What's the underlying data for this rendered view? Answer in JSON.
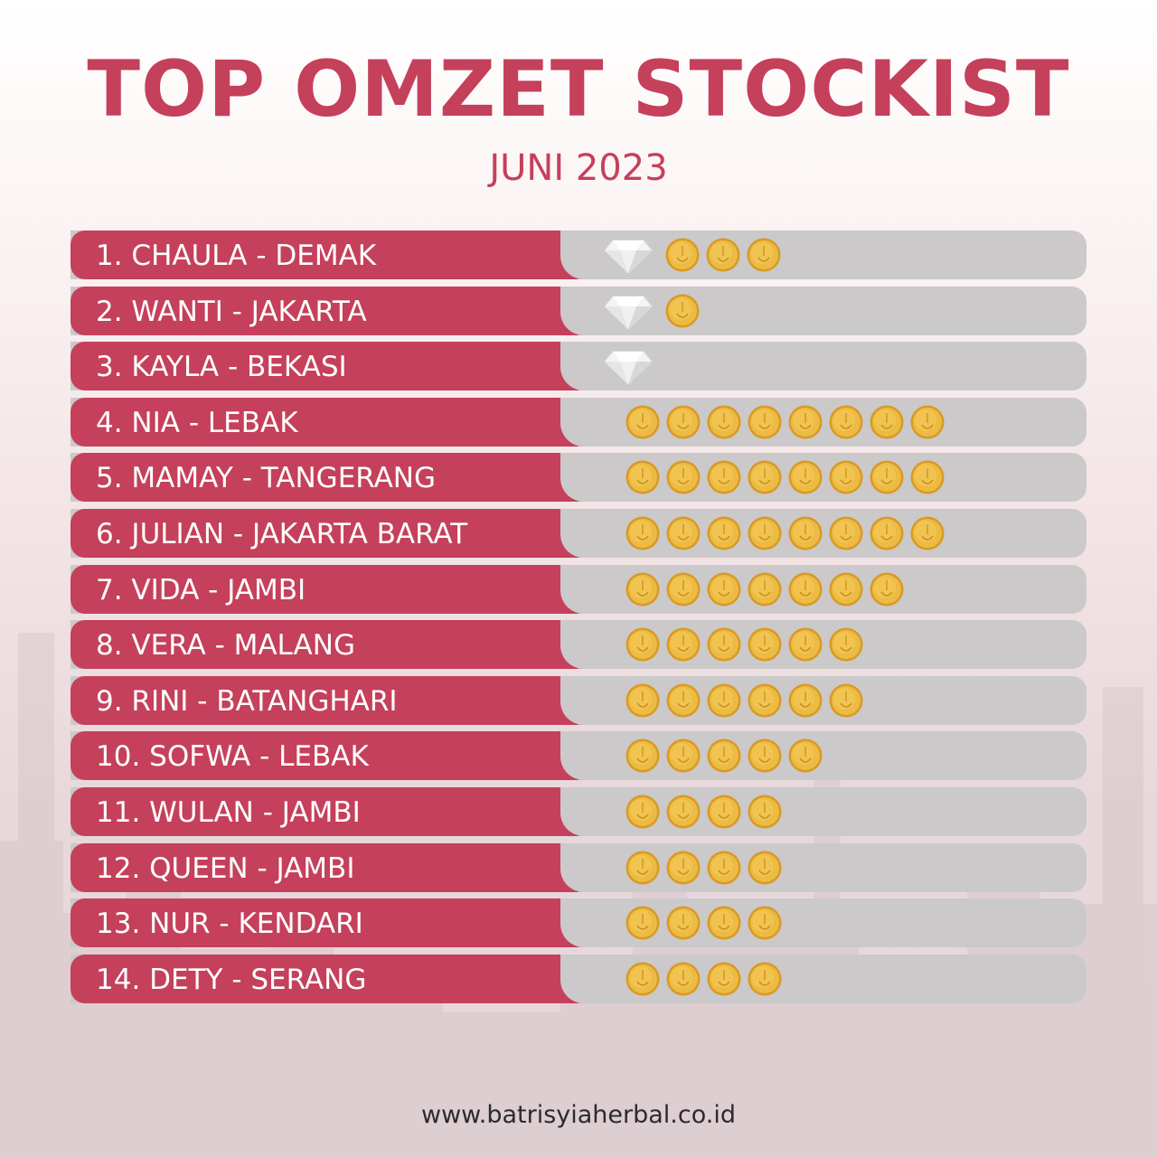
{
  "header": {
    "title": "TOP OMZET STOCKIST",
    "subtitle": "JUNI 2023"
  },
  "colors": {
    "accent": "#c5405b",
    "bar_gray": "#cbc9ca",
    "coin_gold": "#e8b53a"
  },
  "icons": {
    "diamond": "diamond-icon",
    "coin": "gold-coin-icon"
  },
  "rankings": [
    {
      "label": "1. CHAULA - DEMAK",
      "diamonds": 1,
      "coins": 3
    },
    {
      "label": "2. WANTI - JAKARTA",
      "diamonds": 1,
      "coins": 1
    },
    {
      "label": "3. KAYLA - BEKASI",
      "diamonds": 1,
      "coins": 0
    },
    {
      "label": "4. NIA - LEBAK",
      "diamonds": 0,
      "coins": 8
    },
    {
      "label": "5. MAMAY - TANGERANG",
      "diamonds": 0,
      "coins": 8
    },
    {
      "label": "6. JULIAN - JAKARTA BARAT",
      "diamonds": 0,
      "coins": 8
    },
    {
      "label": "7. VIDA - JAMBI",
      "diamonds": 0,
      "coins": 7
    },
    {
      "label": "8. VERA - MALANG",
      "diamonds": 0,
      "coins": 6
    },
    {
      "label": "9. RINI - BATANGHARI",
      "diamonds": 0,
      "coins": 6
    },
    {
      "label": "10. SOFWA - LEBAK",
      "diamonds": 0,
      "coins": 5
    },
    {
      "label": "11. WULAN - JAMBI",
      "diamonds": 0,
      "coins": 4
    },
    {
      "label": "12. QUEEN - JAMBI",
      "diamonds": 0,
      "coins": 4
    },
    {
      "label": "13. NUR - KENDARI",
      "diamonds": 0,
      "coins": 4
    },
    {
      "label": "14. DETY - SERANG",
      "diamonds": 0,
      "coins": 4
    }
  ],
  "footer": {
    "website": "www.batrisyiaherbal.co.id"
  }
}
